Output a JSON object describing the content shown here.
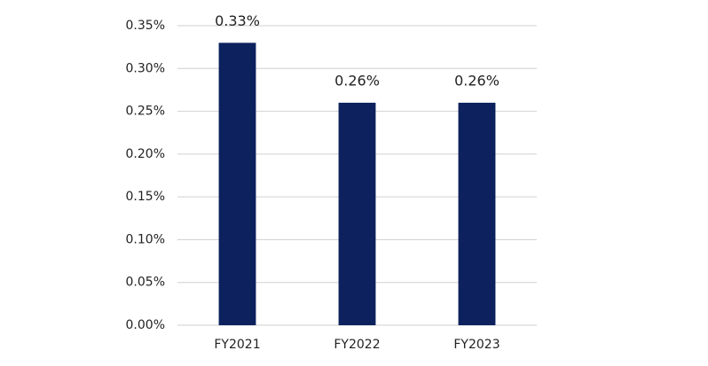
{
  "chart_data": {
    "type": "bar",
    "categories": [
      "FY2021",
      "FY2022",
      "FY2023"
    ],
    "values": [
      0.33,
      0.26,
      0.26
    ],
    "value_labels": [
      "0.33%",
      "0.26%",
      "0.26%"
    ],
    "color": "#0c215e",
    "ylim": [
      0,
      0.35
    ],
    "yticks": [
      {
        "value": 0,
        "label": "0.00%"
      },
      {
        "value": 0.05,
        "label": "0.05%"
      },
      {
        "value": 0.1,
        "label": "0.10%"
      },
      {
        "value": 0.15,
        "label": "0.15%"
      },
      {
        "value": 0.2,
        "label": "0.20%"
      },
      {
        "value": 0.25,
        "label": "0.25%"
      },
      {
        "value": 0.3,
        "label": "0.30%"
      },
      {
        "value": 0.35,
        "label": "0.35%"
      }
    ],
    "grid": true
  }
}
